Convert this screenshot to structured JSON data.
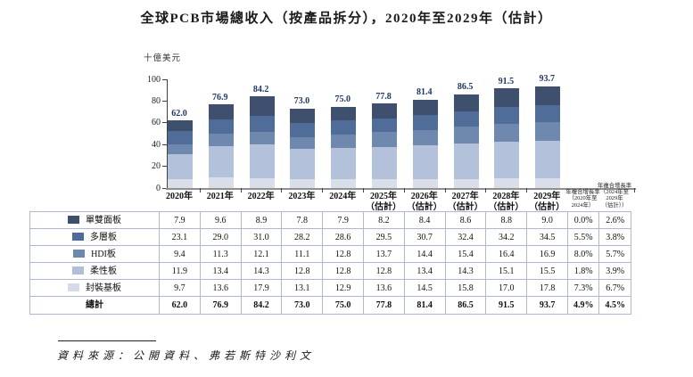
{
  "title": "全球PCB市場總收入（按產品拆分），2020年至2029年（估計）",
  "chart_data": {
    "type": "bar",
    "stacked": true,
    "unit_label": "十億美元",
    "ylim": [
      0,
      100
    ],
    "yticks": [
      100,
      80,
      60,
      40,
      20,
      0
    ],
    "grid": false,
    "stack_order": "bottom-to-top",
    "legend_position": "table-rows-below-chart",
    "categories": [
      [
        "2020年"
      ],
      [
        "2021年"
      ],
      [
        "2022年"
      ],
      [
        "2023年"
      ],
      [
        "2024年"
      ],
      [
        "2025年",
        "（估計）"
      ],
      [
        "2026年",
        "（估計）"
      ],
      [
        "2027年",
        "（估計）"
      ],
      [
        "2028年",
        "（估計）"
      ],
      [
        "2029年",
        "（估計）"
      ]
    ],
    "totals": [
      "62.0",
      "76.9",
      "84.2",
      "73.0",
      "75.0",
      "77.8",
      "81.4",
      "86.5",
      "91.5",
      "93.7"
    ],
    "series": [
      {
        "name": "單雙面板",
        "color": "#d9dfea",
        "values": [
          7.9,
          9.6,
          8.9,
          7.8,
          7.9,
          8.2,
          8.4,
          8.6,
          8.8,
          9.0
        ]
      },
      {
        "name": "多層板",
        "color": "#b3c2da",
        "values": [
          23.1,
          29.0,
          31.0,
          28.2,
          28.6,
          29.5,
          30.7,
          32.4,
          34.2,
          34.5
        ]
      },
      {
        "name": "HDI板",
        "color": "#6e88ae",
        "values": [
          9.4,
          11.3,
          12.1,
          11.1,
          12.8,
          13.7,
          14.4,
          15.4,
          16.4,
          16.9
        ]
      },
      {
        "name": "柔性板",
        "color": "#506d99",
        "values": [
          11.9,
          13.4,
          14.3,
          12.8,
          12.8,
          12.8,
          13.4,
          14.3,
          15.1,
          15.5
        ]
      },
      {
        "name": "封裝基板",
        "color": "#3e506e",
        "values": [
          9.7,
          13.6,
          17.9,
          13.1,
          12.9,
          13.6,
          14.5,
          15.8,
          17.0,
          17.8
        ]
      }
    ]
  },
  "table": {
    "cagr_headers": [
      {
        "lines": [
          "年複合增長率",
          "（2020年至",
          "2024年）"
        ]
      },
      {
        "lines": [
          "年複合增長率",
          "（2024年至",
          "2029年",
          "（估計））"
        ]
      }
    ],
    "rows": [
      {
        "label": "單雙面板",
        "swatch": "#3d4f6d",
        "bold": false,
        "values": [
          "7.9",
          "9.6",
          "8.9",
          "7.8",
          "7.9",
          "8.2",
          "8.4",
          "8.6",
          "8.8",
          "9.0",
          "0.0%",
          "2.6%"
        ]
      },
      {
        "label": "多層板",
        "swatch": "#4f6b97",
        "bold": false,
        "values": [
          "23.1",
          "29.0",
          "31.0",
          "28.2",
          "28.6",
          "29.5",
          "30.7",
          "32.4",
          "34.2",
          "34.5",
          "5.5%",
          "3.8%"
        ]
      },
      {
        "label": "HDI板",
        "swatch": "#6d88ad",
        "bold": false,
        "values": [
          "9.4",
          "11.3",
          "12.1",
          "11.1",
          "12.8",
          "13.7",
          "14.4",
          "15.4",
          "16.4",
          "16.9",
          "8.0%",
          "5.7%"
        ]
      },
      {
        "label": "柔性板",
        "swatch": "#b0c0d8",
        "bold": false,
        "values": [
          "11.9",
          "13.4",
          "14.3",
          "12.8",
          "12.8",
          "12.8",
          "13.4",
          "14.3",
          "15.1",
          "15.5",
          "1.8%",
          "3.9%"
        ]
      },
      {
        "label": "封裝基板",
        "swatch": "#d5dbe8",
        "bold": false,
        "values": [
          "9.7",
          "13.6",
          "17.9",
          "13.1",
          "12.9",
          "13.6",
          "14.5",
          "15.8",
          "17.0",
          "17.8",
          "7.3%",
          "6.7%"
        ]
      },
      {
        "label": "總計",
        "swatch": null,
        "bold": true,
        "values": [
          "62.0",
          "76.9",
          "84.2",
          "73.0",
          "75.0",
          "77.8",
          "81.4",
          "86.5",
          "91.5",
          "93.7",
          "4.9%",
          "4.5%"
        ]
      }
    ]
  },
  "source": "資料來源：公開資料、弗若斯特沙利文"
}
